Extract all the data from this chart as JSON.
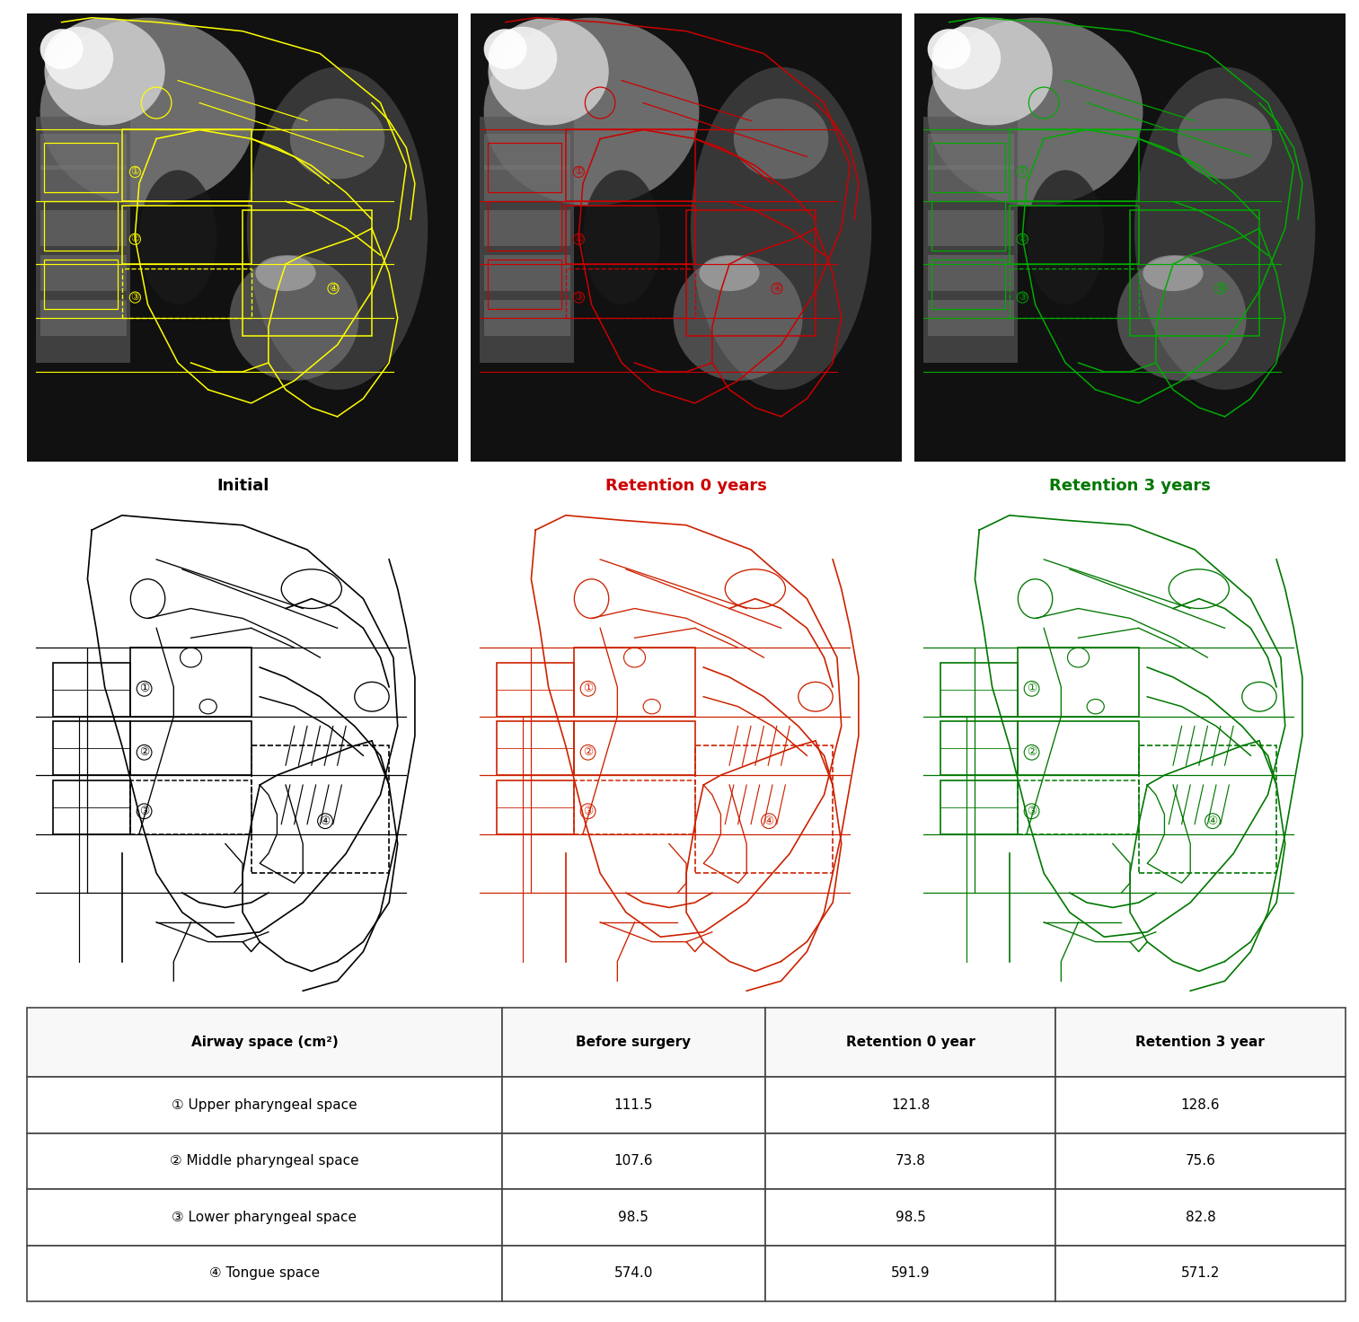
{
  "title_initial": "Initial",
  "title_ret0": "Retention 0 years",
  "title_ret3": "Retention 3 years",
  "title_initial_color": "#000000",
  "title_ret0_color": "#cc0000",
  "title_ret3_color": "#007700",
  "table_headers": [
    "Airway space (cm²)",
    "Before surgery",
    "Retention 0 year",
    "Retention 3 year"
  ],
  "table_rows": [
    [
      "① Upper pharyngeal space",
      "111.5",
      "121.8",
      "128.6"
    ],
    [
      "② Middle pharyngeal space",
      "107.6",
      "73.8",
      "75.6"
    ],
    [
      "③ Lower pharyngeal space",
      "98.5",
      "98.5",
      "82.8"
    ],
    [
      "④ Tongue space",
      "574.0",
      "591.9",
      "571.2"
    ]
  ],
  "bg_color": "#ffffff",
  "drawing_color_initial": "#000000",
  "drawing_color_ret0": "#cc2200",
  "drawing_color_ret3": "#007700",
  "xray_overlay_initial": "#ffff00",
  "xray_overlay_ret0": "#cc0000",
  "xray_overlay_ret3": "#00aa00",
  "title_fontsize": 13,
  "table_fontsize": 11
}
